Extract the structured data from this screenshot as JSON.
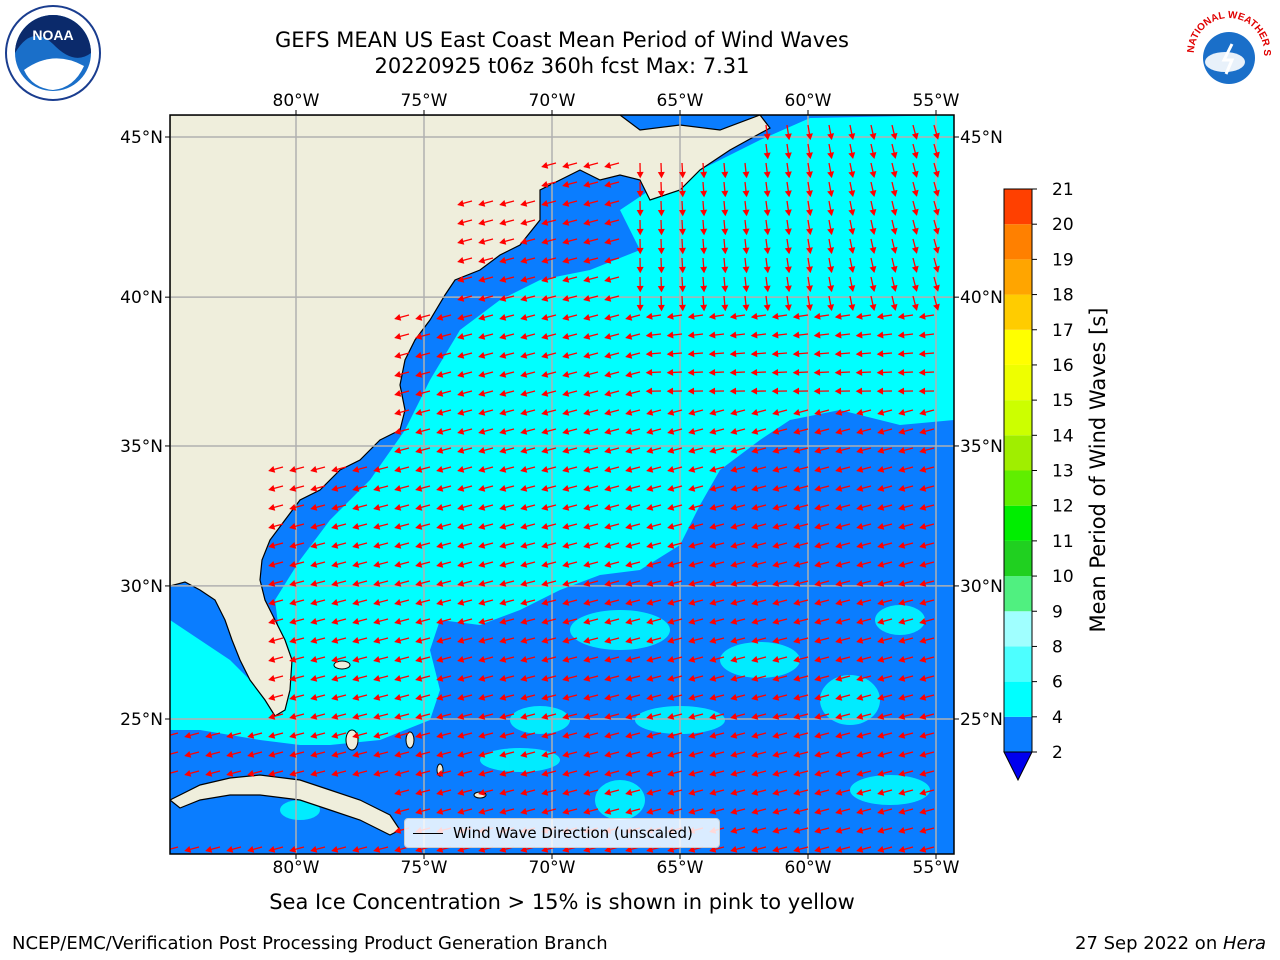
{
  "title": {
    "line1": "GEFS MEAN US East Coast Mean Period of Wind Waves",
    "line2": "20220925 t06z 360h fcst   Max: 7.31"
  },
  "map": {
    "lon_ticks": [
      "80°W",
      "75°W",
      "70°W",
      "65°W",
      "60°W",
      "55°W"
    ],
    "lat_ticks": [
      "45°N",
      "40°N",
      "35°N",
      "30°N",
      "25°N"
    ],
    "lon_range": [
      -85,
      -54.5
    ],
    "lat_range": [
      20.5,
      46
    ],
    "colors": {
      "land": "#efeedc",
      "band_2_4": "#0a7dff",
      "band_4_6": "#00ffff",
      "arrow": "#ff0000",
      "grid": "#b0b0b0"
    }
  },
  "legend": {
    "label": "Wind Wave Direction (unscaled)"
  },
  "colorbar": {
    "label": "Mean Period of Wind Waves [s]",
    "ticks": [
      "2",
      "4",
      "6",
      "8",
      "9",
      "10",
      "11",
      "12",
      "13",
      "14",
      "15",
      "16",
      "17",
      "18",
      "19",
      "20",
      "21"
    ],
    "colors": [
      "#0a7dff",
      "#00ffff",
      "#4dffff",
      "#a0ffff",
      "#50f080",
      "#20d020",
      "#00ee00",
      "#60ee00",
      "#a0ee00",
      "#ccff00",
      "#eeff00",
      "#ffff00",
      "#ffcc00",
      "#ffa500",
      "#ff8000",
      "#ff4000",
      "#ff0000"
    ],
    "under_color": "#0000ee"
  },
  "notes": {
    "ice": "Sea Ice Concentration > 15% is shown in pink to yellow",
    "credit": "NCEP/EMC/Verification Post Processing Product Generation Branch",
    "date": "27 Sep 2022 on ",
    "host": "Hera"
  },
  "logos": {
    "left": "NOAA",
    "right": "NATIONAL WEATHER SERVICE"
  }
}
